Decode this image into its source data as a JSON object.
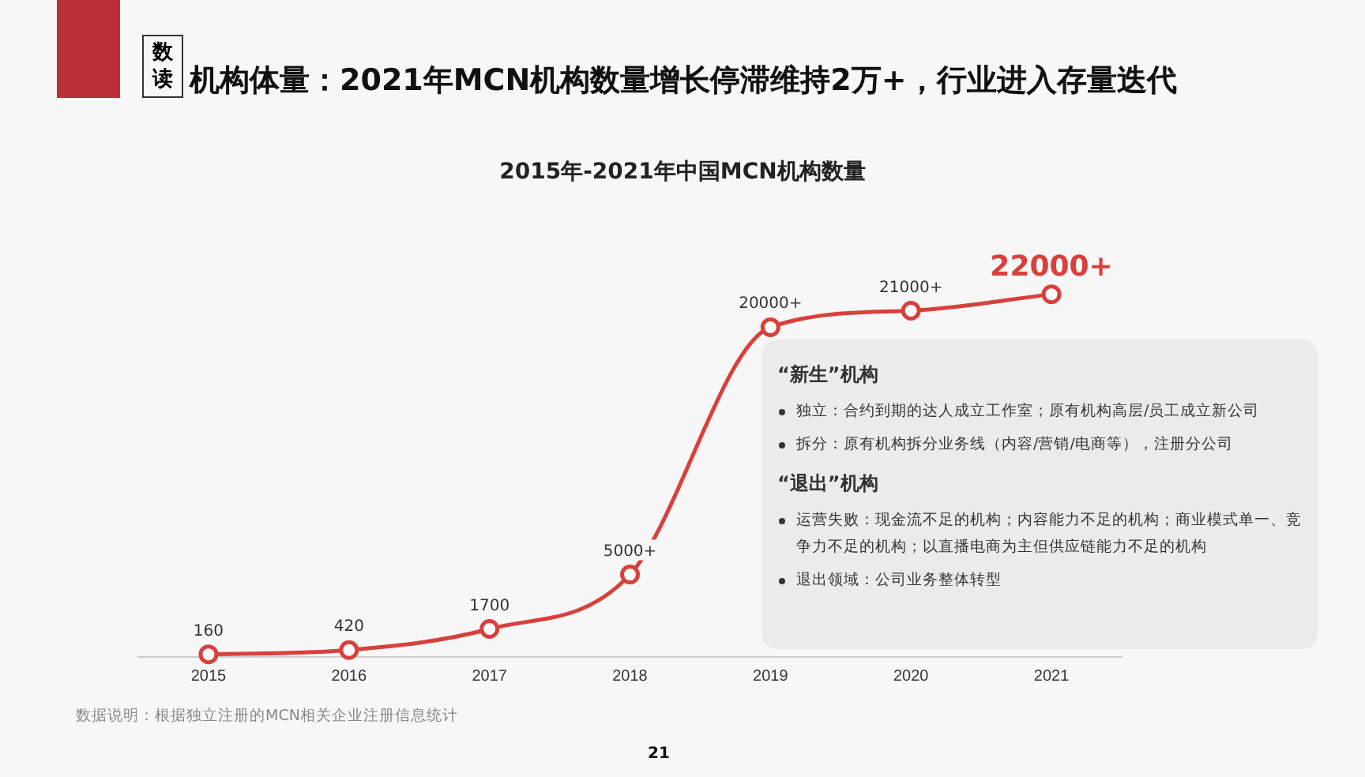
{
  "chart_data": {
    "type": "line",
    "title": "机构体量：2021年MCN机构数量增长停滞维持2万+，行业进入存量迭代",
    "subtitle": "2015年-2021年中国MCN机构数量",
    "categories": [
      "2015",
      "2016",
      "2017",
      "2018",
      "2019",
      "2020",
      "2021"
    ],
    "series": [
      {
        "color": "#d9403c",
        "values": [
          160,
          420,
          1700,
          5000,
          20000,
          21000,
          22000
        ],
        "value_labels": [
          "160",
          "420",
          "1700",
          "5000+",
          "20000+",
          "21000+",
          "22000+"
        ]
      }
    ],
    "marker": "circle",
    "line_style": "solid",
    "grid": false,
    "legend": false,
    "tick_labels": "x",
    "annotations": [
      "数读",
      "“新生”机构",
      "独立：合约到期的达人成立工作室；原有机构高层/员工成立新公司",
      "拆分：原有机构拆分业务线（内容/营销/电商等），注册分公司",
      "“退出”机构",
      "运营失败：现金流不足的机构；内容能力不足的机构；商业模式单一、竞争力不足的机构；以直播电商为主但供应链能力不足的机构",
      "退出领域：公司业务整体转型",
      "数据说明：根据独立注册的MCN相关企业注册信息统计",
      "21"
    ]
  }
}
